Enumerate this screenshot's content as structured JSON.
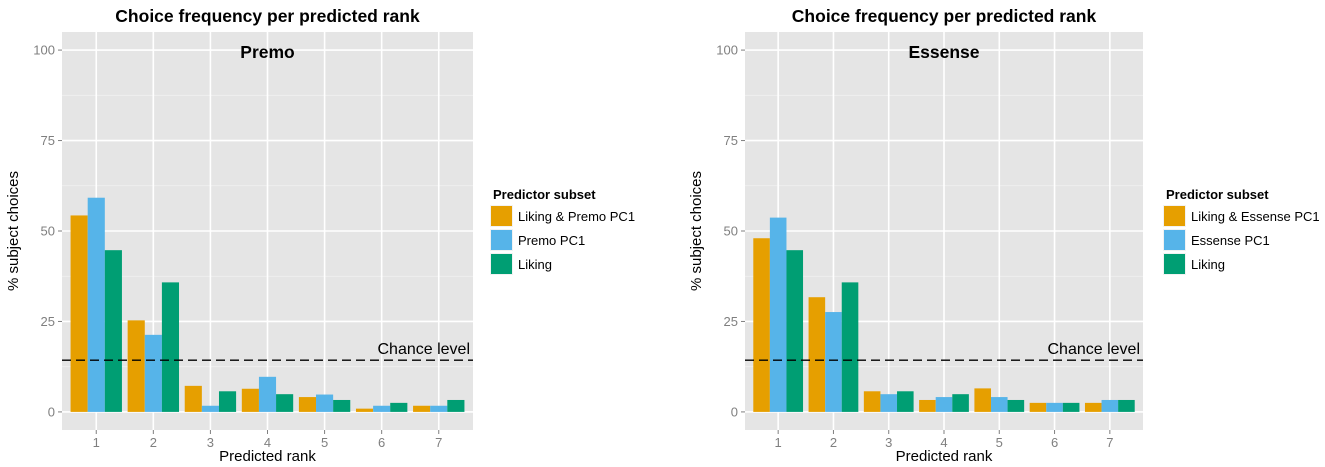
{
  "chart_data": [
    {
      "type": "bar",
      "title": "Choice frequency per predicted rank",
      "subtitle": "Premo",
      "xlabel": "Predicted rank",
      "ylabel": "% subject choices",
      "categories": [
        "1",
        "2",
        "3",
        "4",
        "5",
        "6",
        "7"
      ],
      "ylim": [
        0,
        100
      ],
      "yticks": [
        "0",
        "25",
        "50",
        "75",
        "100"
      ],
      "grid": true,
      "legend_title": "Predictor subset",
      "legend_position": "right",
      "series": [
        {
          "name": "Liking & Premo PC1",
          "color": "#E69F00",
          "values": [
            54.3,
            25.3,
            7.2,
            6.4,
            4.1,
            0.9,
            1.7
          ]
        },
        {
          "name": "Premo PC1",
          "color": "#56B4E9",
          "values": [
            59.2,
            21.3,
            1.7,
            9.7,
            4.8,
            1.7,
            1.7
          ]
        },
        {
          "name": "Liking",
          "color": "#009E73",
          "values": [
            44.7,
            35.8,
            5.7,
            4.9,
            3.3,
            2.5,
            3.3
          ]
        }
      ],
      "chance_level": {
        "value": 14.3,
        "label": "Chance level"
      }
    },
    {
      "type": "bar",
      "title": "Choice frequency per predicted rank",
      "subtitle": "Essense",
      "xlabel": "Predicted rank",
      "ylabel": "% subject choices",
      "categories": [
        "1",
        "2",
        "3",
        "4",
        "5",
        "6",
        "7"
      ],
      "ylim": [
        0,
        100
      ],
      "yticks": [
        "0",
        "25",
        "50",
        "75",
        "100"
      ],
      "grid": true,
      "legend_title": "Predictor subset",
      "legend_position": "right",
      "series": [
        {
          "name": "Liking & Essense PC1",
          "color": "#E69F00",
          "values": [
            48.0,
            31.7,
            5.7,
            3.3,
            6.5,
            2.5,
            2.5
          ]
        },
        {
          "name": "Essense PC1",
          "color": "#56B4E9",
          "values": [
            53.7,
            27.6,
            4.9,
            4.1,
            4.1,
            2.5,
            3.3
          ]
        },
        {
          "name": "Liking",
          "color": "#009E73",
          "values": [
            44.7,
            35.8,
            5.7,
            4.9,
            3.3,
            2.5,
            3.3
          ]
        }
      ],
      "chance_level": {
        "value": 14.3,
        "label": "Chance level"
      }
    }
  ]
}
